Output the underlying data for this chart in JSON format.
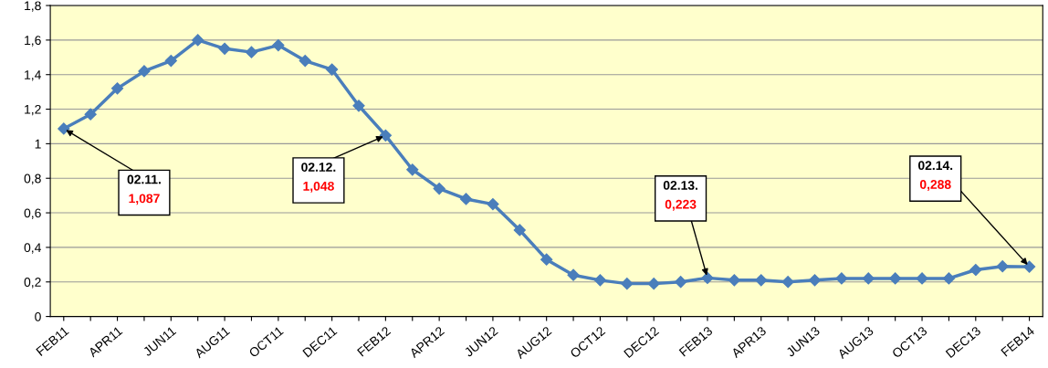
{
  "chart_data": {
    "type": "line",
    "categories": [
      "FEB11",
      null,
      "APR11",
      null,
      "JUN11",
      null,
      "AUG11",
      null,
      "OCT11",
      null,
      "DEC11",
      null,
      "FEB12",
      null,
      "APR12",
      null,
      "JUN12",
      null,
      "AUG12",
      null,
      "OCT12",
      null,
      "DEC12",
      null,
      "FEB13",
      null,
      "APR13",
      null,
      "JUN13",
      null,
      "AUG13",
      null,
      "OCT13",
      null,
      "DEC13",
      null,
      "FEB14"
    ],
    "series": [
      {
        "color": "#4a7ebb",
        "values": [
          1.087,
          1.17,
          1.32,
          1.42,
          1.48,
          1.6,
          1.55,
          1.53,
          1.57,
          1.48,
          1.43,
          1.22,
          1.048,
          0.85,
          0.74,
          0.68,
          0.65,
          0.5,
          0.33,
          0.24,
          0.21,
          0.19,
          0.19,
          0.2,
          0.223,
          0.21,
          0.21,
          0.2,
          0.21,
          0.22,
          0.22,
          0.22,
          0.22,
          0.22,
          0.27,
          0.29,
          0.288
        ]
      }
    ],
    "ylim": [
      0,
      1.8
    ],
    "yticks": [
      0,
      {
        "value": 0.2,
        "label": "0,2"
      },
      {
        "value": 0.4,
        "label": "0,4"
      },
      {
        "value": 0.6,
        "label": "0,6"
      },
      {
        "value": 0.8,
        "label": "0,8"
      },
      1,
      {
        "value": 1.2,
        "label": "1,2"
      },
      {
        "value": 1.4,
        "label": "1,4"
      },
      {
        "value": 1.6,
        "label": "1,6"
      },
      {
        "value": 1.8,
        "label": "1,8"
      }
    ],
    "grid": "y",
    "marker": "diamond",
    "line_style": "solid",
    "annotations": [
      {
        "text": "02.11.",
        "x": "FEB11",
        "y": 1.087
      },
      "1,087",
      {
        "text": "02.12.",
        "x": "FEB12",
        "y": 1.048
      },
      "1,048",
      {
        "text": "02.13.",
        "x": "FEB13",
        "y": 0.223
      },
      "0,223",
      {
        "text": "02.14.",
        "x": "FEB14",
        "y": 0.288
      },
      "0,288"
    ]
  }
}
